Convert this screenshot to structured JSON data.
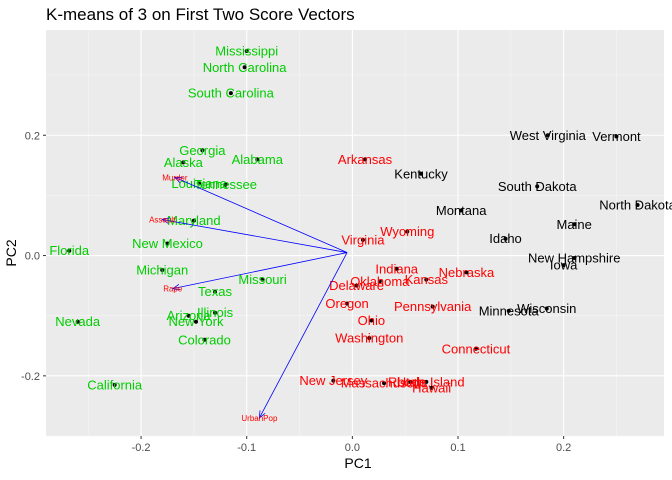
{
  "chart_data": {
    "type": "scatter",
    "title": "K-means of 3 on First Two Score Vectors",
    "xlabel": "PC1",
    "ylabel": "PC2",
    "xlim": [
      -0.29,
      0.295
    ],
    "ylim": [
      -0.3,
      0.375
    ],
    "x_ticks": [
      -0.2,
      -0.1,
      0.0,
      0.1,
      0.2
    ],
    "x_tick_labels": [
      "-0.2",
      "-0.1",
      "0.0",
      "0.1",
      "0.2"
    ],
    "y_ticks": [
      -0.2,
      0.0,
      0.2
    ],
    "y_tick_labels": [
      "-0.2",
      "0.0",
      "0.2"
    ],
    "grid": true,
    "colors": {
      "panel": "#ebebeb",
      "grid_major": "#ffffff",
      "grid_minor": "#f5f5f5",
      "cluster_red": "#ff0000",
      "cluster_black": "#000000",
      "cluster_green": "#00cd00",
      "arrow": "#0000ff"
    },
    "arrow_origin": [
      -0.005,
      0.005
    ],
    "arrows": [
      {
        "label": "Murder",
        "x": -0.168,
        "y": 0.13
      },
      {
        "label": "Assault",
        "x": -0.18,
        "y": 0.06
      },
      {
        "label": "Rape",
        "x": -0.17,
        "y": -0.055
      },
      {
        "label": "UrbanPop",
        "x": -0.088,
        "y": -0.27
      }
    ],
    "series": [
      {
        "cluster": "red",
        "points": [
          {
            "label": "Arkansas",
            "x": 0.012,
            "y": 0.16
          },
          {
            "label": "Wyoming",
            "x": 0.052,
            "y": 0.04
          },
          {
            "label": "Virginia",
            "x": 0.01,
            "y": 0.026
          },
          {
            "label": "Indiana",
            "x": 0.042,
            "y": -0.022
          },
          {
            "label": "Nebraska",
            "x": 0.108,
            "y": -0.028
          },
          {
            "label": "Oklahoma",
            "x": 0.026,
            "y": -0.043
          },
          {
            "label": "Kansas",
            "x": 0.07,
            "y": -0.04
          },
          {
            "label": "Delaware",
            "x": 0.004,
            "y": -0.05
          },
          {
            "label": "Oregon",
            "x": -0.005,
            "y": -0.08
          },
          {
            "label": "Pennsylvania",
            "x": 0.076,
            "y": -0.085
          },
          {
            "label": "Ohio",
            "x": 0.018,
            "y": -0.108
          },
          {
            "label": "Washington",
            "x": 0.016,
            "y": -0.137
          },
          {
            "label": "Connecticut",
            "x": 0.117,
            "y": -0.155
          },
          {
            "label": "New Jersey",
            "x": -0.018,
            "y": -0.208
          },
          {
            "label": "Massachusetts",
            "x": 0.03,
            "y": -0.212
          },
          {
            "label": "Utah",
            "x": 0.055,
            "y": -0.21
          },
          {
            "label": "Rhode Island",
            "x": 0.07,
            "y": -0.21
          },
          {
            "label": "Hawaii",
            "x": 0.075,
            "y": -0.22
          }
        ]
      },
      {
        "cluster": "black",
        "points": [
          {
            "label": "West Virginia",
            "x": 0.185,
            "y": 0.2
          },
          {
            "label": "Vermont",
            "x": 0.25,
            "y": 0.198
          },
          {
            "label": "Kentucky",
            "x": 0.065,
            "y": 0.136
          },
          {
            "label": "South Dakota",
            "x": 0.175,
            "y": 0.115
          },
          {
            "label": "North Dakota",
            "x": 0.27,
            "y": 0.084
          },
          {
            "label": "Montana",
            "x": 0.103,
            "y": 0.075
          },
          {
            "label": "Maine",
            "x": 0.21,
            "y": 0.052
          },
          {
            "label": "Idaho",
            "x": 0.145,
            "y": 0.028
          },
          {
            "label": "New Hampshire",
            "x": 0.21,
            "y": -0.004
          },
          {
            "label": "Iowa",
            "x": 0.2,
            "y": -0.016
          },
          {
            "label": "Wisconsin",
            "x": 0.184,
            "y": -0.088
          },
          {
            "label": "Minnesota",
            "x": 0.148,
            "y": -0.092
          }
        ]
      },
      {
        "cluster": "green",
        "points": [
          {
            "label": "Mississippi",
            "x": -0.1,
            "y": 0.34
          },
          {
            "label": "North Carolina",
            "x": -0.102,
            "y": 0.313
          },
          {
            "label": "South Carolina",
            "x": -0.115,
            "y": 0.27
          },
          {
            "label": "Georgia",
            "x": -0.142,
            "y": 0.175
          },
          {
            "label": "Alabama",
            "x": -0.09,
            "y": 0.16
          },
          {
            "label": "Alaska",
            "x": -0.16,
            "y": 0.155
          },
          {
            "label": "Louisiana",
            "x": -0.145,
            "y": 0.12
          },
          {
            "label": "Tennessee",
            "x": -0.12,
            "y": 0.118
          },
          {
            "label": "Maryland",
            "x": -0.15,
            "y": 0.058
          },
          {
            "label": "New Mexico",
            "x": -0.175,
            "y": 0.02
          },
          {
            "label": "Florida",
            "x": -0.268,
            "y": 0.008
          },
          {
            "label": "Michigan",
            "x": -0.18,
            "y": -0.024
          },
          {
            "label": "Missouri",
            "x": -0.085,
            "y": -0.04
          },
          {
            "label": "Texas",
            "x": -0.13,
            "y": -0.06
          },
          {
            "label": "Illinois",
            "x": -0.13,
            "y": -0.095
          },
          {
            "label": "Arizona",
            "x": -0.155,
            "y": -0.1
          },
          {
            "label": "New York",
            "x": -0.148,
            "y": -0.11
          },
          {
            "label": "Nevada",
            "x": -0.26,
            "y": -0.11
          },
          {
            "label": "Colorado",
            "x": -0.14,
            "y": -0.14
          },
          {
            "label": "California",
            "x": -0.225,
            "y": -0.215
          }
        ]
      }
    ]
  }
}
